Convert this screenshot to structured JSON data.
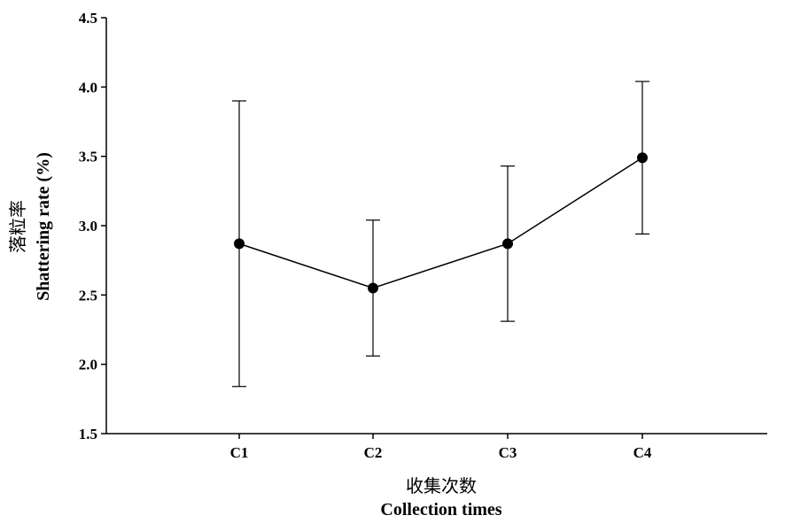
{
  "chart_data": {
    "type": "line",
    "categories": [
      "C1",
      "C2",
      "C3",
      "C4"
    ],
    "series": [
      {
        "values": [
          2.87,
          2.55,
          2.87,
          3.49
        ],
        "error_low": [
          1.84,
          2.06,
          2.31,
          2.94
        ],
        "error_high": [
          3.9,
          3.04,
          3.43,
          4.04
        ],
        "color": "#000000",
        "marker": "filled-circle"
      }
    ],
    "xlabel_cn": "收集次数",
    "xlabel": "Collection times",
    "ylabel_cn": "落粒率",
    "ylabel": "Shattering rate (%)",
    "ylim": [
      1.5,
      4.5
    ],
    "yticks": [
      "1.5",
      "2.0",
      "2.5",
      "3.0",
      "3.5",
      "4.0",
      "4.5"
    ],
    "grid": false,
    "legend": "none"
  }
}
